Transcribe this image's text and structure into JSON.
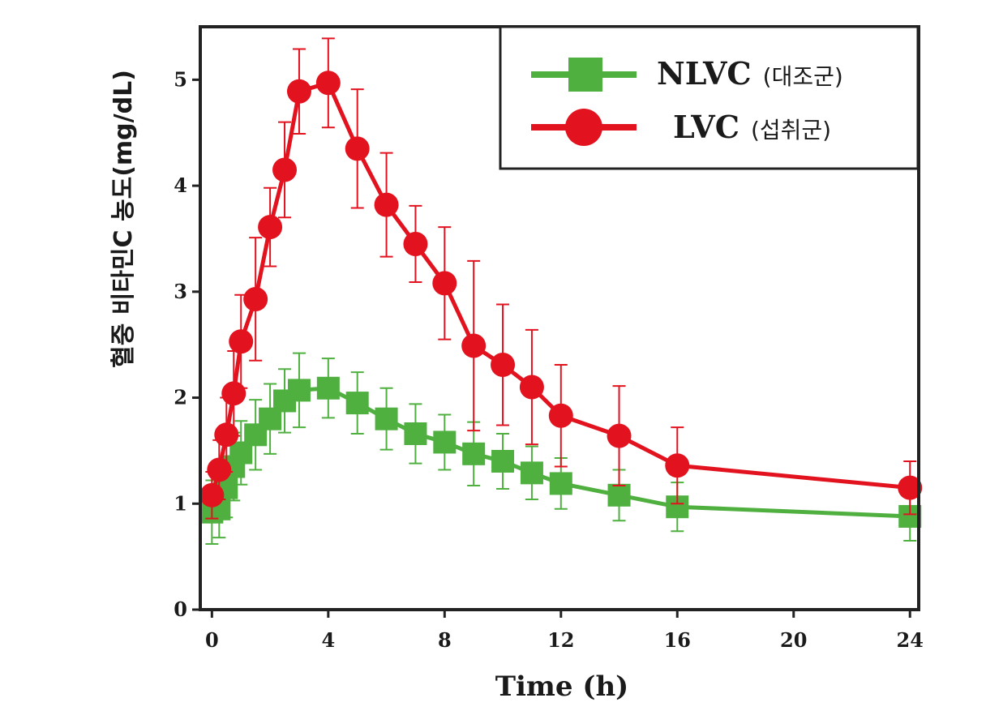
{
  "chart_data": {
    "type": "line",
    "title": "",
    "xlabel": "Time (h)",
    "ylabel": "혈중 비타민C 농도(mg/dL)",
    "xlim": [
      -0.4,
      24.3
    ],
    "ylim": [
      0,
      5.5
    ],
    "xticks": [
      0,
      4,
      8,
      12,
      16,
      20,
      24
    ],
    "yticks": [
      0,
      1,
      2,
      3,
      4,
      5
    ],
    "legend_position": "top-right",
    "series": [
      {
        "name": "NLVC",
        "name_suffix": "(대조군)",
        "color": "#4fb040",
        "marker": "square",
        "x": [
          0,
          0.25,
          0.5,
          0.75,
          1,
          1.5,
          2,
          2.5,
          3,
          4,
          5,
          6,
          7,
          8,
          9,
          10,
          11,
          12,
          14,
          16,
          24
        ],
        "y": [
          0.92,
          0.95,
          1.15,
          1.35,
          1.48,
          1.65,
          1.8,
          1.97,
          2.07,
          2.09,
          1.95,
          1.8,
          1.66,
          1.58,
          1.47,
          1.4,
          1.29,
          1.19,
          1.08,
          0.97,
          0.88
        ],
        "err": [
          0.3,
          0.27,
          0.28,
          0.32,
          0.3,
          0.33,
          0.33,
          0.3,
          0.35,
          0.28,
          0.29,
          0.29,
          0.28,
          0.26,
          0.3,
          0.26,
          0.25,
          0.24,
          0.24,
          0.23,
          0.23
        ]
      },
      {
        "name": "LVC",
        "name_suffix": "(섭취군)",
        "color": "#e2131f",
        "marker": "circle",
        "x": [
          0,
          0.25,
          0.5,
          0.75,
          1,
          1.5,
          2,
          2.5,
          3,
          4,
          5,
          6,
          7,
          8,
          9,
          10,
          11,
          12,
          14,
          16,
          24
        ],
        "y": [
          1.08,
          1.32,
          1.65,
          2.04,
          2.53,
          2.93,
          3.61,
          4.15,
          4.89,
          4.97,
          4.35,
          3.82,
          3.45,
          3.08,
          2.49,
          2.31,
          2.1,
          1.83,
          1.64,
          1.36,
          1.15
        ],
        "err": [
          0.22,
          0.28,
          0.35,
          0.4,
          0.44,
          0.58,
          0.37,
          0.45,
          0.4,
          0.42,
          0.56,
          0.49,
          0.36,
          0.53,
          0.8,
          0.57,
          0.54,
          0.48,
          0.47,
          0.36,
          0.25
        ]
      }
    ]
  }
}
